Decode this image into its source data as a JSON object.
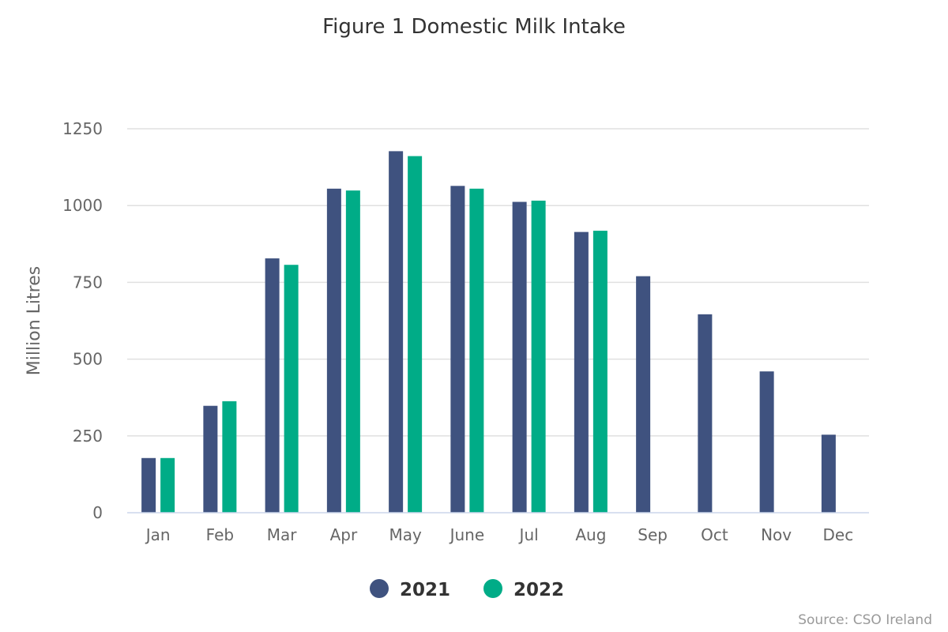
{
  "chart_data": {
    "type": "bar",
    "title": "Figure 1 Domestic Milk Intake",
    "xlabel": "",
    "ylabel": "Million Litres",
    "categories": [
      "Jan",
      "Feb",
      "Mar",
      "Apr",
      "May",
      "June",
      "Jul",
      "Aug",
      "Sep",
      "Oct",
      "Nov",
      "Dec"
    ],
    "ylim": [
      0,
      1250
    ],
    "yticks": [
      0,
      250,
      500,
      750,
      1000,
      1250
    ],
    "grid": true,
    "legend_position": "bottom-center",
    "series": [
      {
        "name": "2021",
        "color": "#3f527f",
        "values": [
          178,
          348,
          828,
          1055,
          1177,
          1064,
          1012,
          914,
          770,
          646,
          460,
          254
        ]
      },
      {
        "name": "2022",
        "color": "#00ac87",
        "values": [
          178,
          363,
          807,
          1049,
          1161,
          1055,
          1016,
          918,
          null,
          null,
          null,
          null
        ]
      }
    ],
    "credit": "Source: CSO Ireland"
  }
}
